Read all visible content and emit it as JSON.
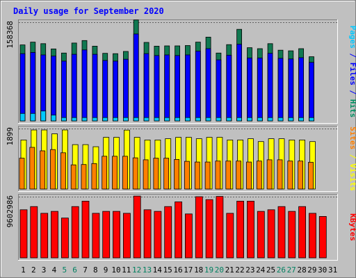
{
  "chart_data": [
    {
      "type": "bar",
      "title": "Daily usage for September 2020",
      "ymax_label": "158368",
      "ylabel_parts": [
        {
          "text": "Pages",
          "color": "#00c8ff"
        },
        {
          "text": " / ",
          "color": "#0000ff"
        },
        {
          "text": "Files",
          "color": "#0000ff"
        },
        {
          "text": " / ",
          "color": "#0000ff"
        },
        {
          "text": "Hits",
          "color": "#009060"
        }
      ],
      "ylim": [
        0,
        158368
      ],
      "categories": [
        "1",
        "2",
        "3",
        "4",
        "5",
        "6",
        "7",
        "8",
        "9",
        "10",
        "11",
        "12",
        "13",
        "14",
        "15",
        "16",
        "17",
        "18",
        "19",
        "20",
        "21",
        "22",
        "23",
        "24",
        "25",
        "26",
        "27",
        "28",
        "29",
        "30",
        "31"
      ],
      "series": [
        {
          "name": "Hits",
          "color": "#107850",
          "values": [
            122000,
            126500,
            124000,
            115500,
            109000,
            125000,
            129000,
            120000,
            108500,
            108000,
            111500,
            162000,
            126000,
            120000,
            120500,
            120500,
            121000,
            126500,
            134500,
            109000,
            122500,
            147000,
            117500,
            116000,
            124000,
            113500,
            112500,
            116000,
            103000,
            null,
            null
          ]
        },
        {
          "name": "Files",
          "color": "#0000ff",
          "values": [
            108000,
            110000,
            106000,
            104000,
            96000,
            107000,
            114000,
            107000,
            97000,
            96000,
            99000,
            139500,
            108000,
            105000,
            106000,
            105000,
            106000,
            112000,
            116000,
            98000,
            105500,
            123000,
            101000,
            101000,
            108500,
            100500,
            99500,
            101500,
            94000,
            null,
            null
          ]
        },
        {
          "name": "Pages",
          "color": "#00c8ff",
          "values": [
            12000,
            12000,
            16000,
            9500,
            5500,
            5500,
            5500,
            5500,
            5500,
            5500,
            5500,
            5500,
            5500,
            5500,
            5500,
            5500,
            5500,
            5500,
            5500,
            5500,
            5500,
            5500,
            5500,
            5500,
            5500,
            5500,
            5500,
            5500,
            5500,
            null,
            null
          ]
        }
      ]
    },
    {
      "type": "bar",
      "ymax_label": "1899",
      "ylabel_parts": [
        {
          "text": "Sites",
          "color": "#ff8000"
        },
        {
          "text": " / ",
          "color": "#ffff00"
        },
        {
          "text": "Visits",
          "color": "#ffff00"
        }
      ],
      "ylim": [
        0,
        1899
      ],
      "categories": [
        "1",
        "2",
        "3",
        "4",
        "5",
        "6",
        "7",
        "8",
        "9",
        "10",
        "11",
        "12",
        "13",
        "14",
        "15",
        "16",
        "17",
        "18",
        "19",
        "20",
        "21",
        "22",
        "23",
        "24",
        "25",
        "26",
        "27",
        "28",
        "29",
        "30",
        "31"
      ],
      "series": [
        {
          "name": "Visits",
          "color": "#ffff00",
          "values": [
            1540,
            1855,
            1855,
            1735,
            1855,
            1395,
            1395,
            1330,
            1625,
            1625,
            1850,
            1625,
            1540,
            1540,
            1580,
            1625,
            1625,
            1580,
            1625,
            1625,
            1540,
            1540,
            1580,
            1490,
            1580,
            1580,
            1540,
            1540,
            1490,
            null,
            null
          ]
        },
        {
          "name": "Sites",
          "color": "#ff8000",
          "values": [
            970,
            1310,
            1200,
            1240,
            1140,
            760,
            770,
            800,
            1030,
            1030,
            1030,
            980,
            920,
            970,
            970,
            930,
            870,
            850,
            850,
            880,
            880,
            880,
            850,
            880,
            920,
            920,
            880,
            880,
            840,
            null,
            null
          ]
        }
      ]
    },
    {
      "type": "bar",
      "ymax_label": "9602986",
      "ylabel_parts": [
        {
          "text": "KBytes",
          "color": "#ff0000"
        }
      ],
      "ylim": [
        0,
        9602986
      ],
      "categories": [
        "1",
        "2",
        "3",
        "4",
        "5",
        "6",
        "7",
        "8",
        "9",
        "10",
        "11",
        "12",
        "13",
        "14",
        "15",
        "16",
        "17",
        "18",
        "19",
        "20",
        "21",
        "22",
        "23",
        "24",
        "25",
        "26",
        "27",
        "28",
        "29",
        "30",
        "31"
      ],
      "series": [
        {
          "name": "KBytes",
          "color": "#ff0000",
          "values": [
            7550000,
            8050000,
            7000000,
            7300000,
            6250000,
            8050000,
            8900000,
            7000000,
            7300000,
            7300000,
            7000000,
            9700000,
            7550000,
            7300000,
            8050000,
            8800000,
            6900000,
            9600000,
            9150000,
            9650000,
            7000000,
            8900000,
            8900000,
            7300000,
            7550000,
            8050000,
            7300000,
            8050000,
            7000000,
            6500000,
            null
          ]
        }
      ]
    }
  ],
  "x_label_colors": [
    "#000000",
    "#000000",
    "#000000",
    "#000000",
    "#008060",
    "#008060",
    "#000000",
    "#000000",
    "#000000",
    "#000000",
    "#000000",
    "#008060",
    "#008060",
    "#000000",
    "#000000",
    "#000000",
    "#000000",
    "#000000",
    "#008060",
    "#008060",
    "#000000",
    "#000000",
    "#000000",
    "#000000",
    "#000000",
    "#008060",
    "#008060",
    "#000000",
    "#000000",
    "#000000",
    "#000000"
  ]
}
